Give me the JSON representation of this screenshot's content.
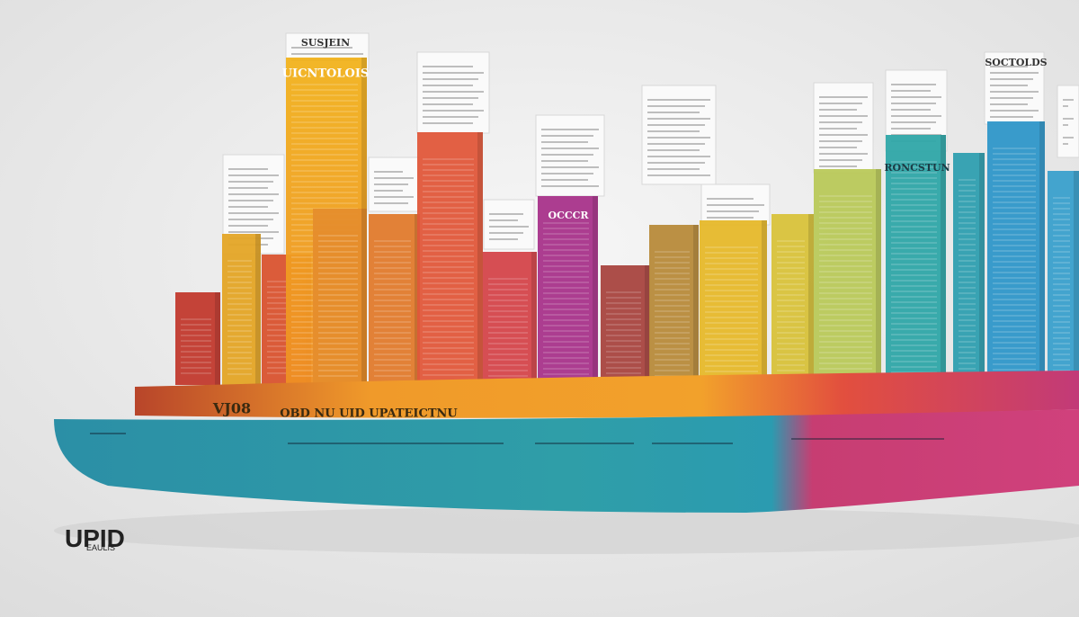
{
  "logo": {
    "mark": "UPID",
    "caption": "EAULIS"
  },
  "labels": {
    "top_sign": "SUSJEIN",
    "tall_bar": "UICNTOLOIS",
    "magenta_bar": "OCCCR",
    "teal_bar": "RONCSTUN",
    "blue_sign": "SOCTOLDS",
    "shelf_tag": "VJ08",
    "shelf_title": "OBD NU UID UPATEICTNU"
  }
}
